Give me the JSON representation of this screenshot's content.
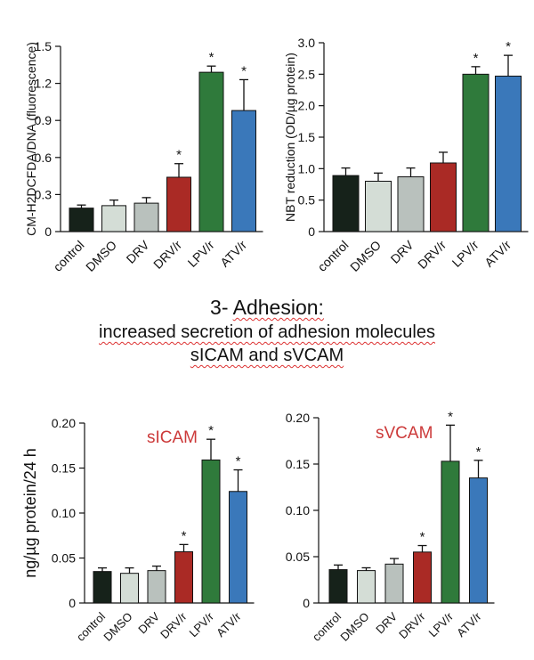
{
  "colors": {
    "control": "#16221a",
    "DMSO": "#d4ddd6",
    "DRV": "#b9c1bd",
    "DRV/r": "#aa2a25",
    "LPV/r": "#2f7a3b",
    "ATV/r": "#3a78ba",
    "label_red": "#cc3a3a"
  },
  "heading": {
    "title_num": "3- ",
    "title_word": "Adhesion:",
    "line2": "increased secretion of adhesion molecules",
    "line3": "sICAM and sVCAM"
  },
  "chart_data": [
    {
      "type": "bar",
      "ylabel": "CM-H2DCFDA/DNA  (fluorescence)",
      "ylim": [
        0,
        1.5
      ],
      "yticks": [
        "0",
        "0.3",
        "0.6",
        "0.9",
        "1.2",
        "1.5"
      ],
      "categories": [
        "control",
        "DMSO",
        "DRV",
        "DRV/r",
        "LPV/r",
        "ATV/r"
      ],
      "values": [
        0.19,
        0.21,
        0.23,
        0.44,
        1.29,
        0.98
      ],
      "errors": [
        0.025,
        0.045,
        0.045,
        0.11,
        0.05,
        0.25
      ],
      "annotations": [
        "",
        "",
        "",
        "*",
        "*",
        "*"
      ]
    },
    {
      "type": "bar",
      "ylabel": "NBT reduction (OD/µg protein)",
      "ylim": [
        0,
        3.0
      ],
      "yticks": [
        "0",
        "0.5",
        "1.0",
        "1.5",
        "2.0",
        "2.5",
        "3.0"
      ],
      "categories": [
        "control",
        "DMSO",
        "DRV",
        "DRV/r",
        "LPV/r",
        "ATV/r"
      ],
      "values": [
        0.89,
        0.8,
        0.87,
        1.09,
        2.5,
        2.47
      ],
      "errors": [
        0.12,
        0.13,
        0.14,
        0.17,
        0.12,
        0.33
      ],
      "annotations": [
        "",
        "",
        "",
        "",
        "*",
        "*"
      ]
    },
    {
      "type": "bar",
      "title": "sICAM",
      "ylabel": "ng/µg protein/24 h",
      "ylim": [
        0,
        0.2
      ],
      "yticks": [
        "0",
        "0.05",
        "0.10",
        "0.15",
        "0.20"
      ],
      "categories": [
        "control",
        "DMSO",
        "DRV",
        "DRV/r",
        "LPV/r",
        "ATV/r"
      ],
      "values": [
        0.035,
        0.033,
        0.036,
        0.057,
        0.159,
        0.124
      ],
      "errors": [
        0.004,
        0.006,
        0.005,
        0.008,
        0.023,
        0.024
      ],
      "annotations": [
        "",
        "",
        "",
        "*",
        "*",
        "*"
      ]
    },
    {
      "type": "bar",
      "title": "sVCAM",
      "ylabel": "",
      "ylim": [
        0,
        0.2
      ],
      "yticks": [
        "0",
        "0.05",
        "0.10",
        "0.15",
        "0.20"
      ],
      "categories": [
        "control",
        "DMSO",
        "DRV",
        "DRV/r",
        "LPV/r",
        "ATV/r"
      ],
      "values": [
        0.036,
        0.035,
        0.042,
        0.055,
        0.153,
        0.135
      ],
      "errors": [
        0.005,
        0.003,
        0.006,
        0.007,
        0.039,
        0.019
      ],
      "annotations": [
        "",
        "",
        "",
        "*",
        "*",
        "*"
      ]
    }
  ]
}
